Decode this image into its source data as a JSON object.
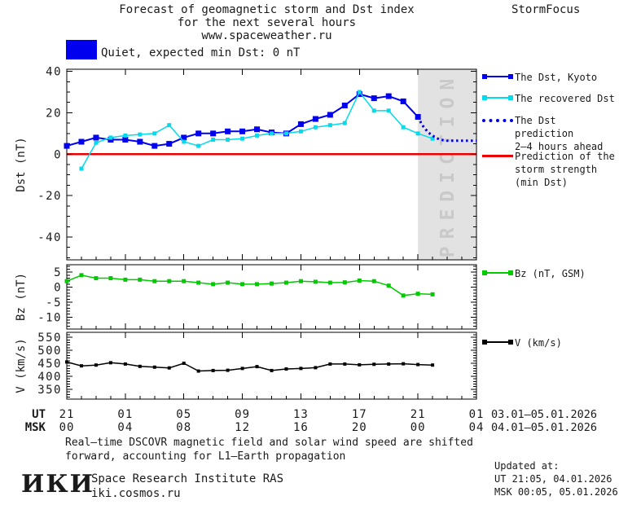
{
  "header": {
    "title_line1": "Forecast of geomagnetic storm and Dst index",
    "title_line2": "for the next several hours",
    "title_line3": "www.spaceweather.ru",
    "brand": "StormFocus"
  },
  "status": {
    "label": "Quiet, expected min Dst: 0 nT",
    "swatch_color": "#0000EE"
  },
  "legend": {
    "dst_kyoto": {
      "label": "The Dst, Kyoto",
      "color": "#0000EE",
      "style": "marker-line"
    },
    "recovered": {
      "label": "The recovered Dst",
      "color": "#00DCEC",
      "style": "marker-line"
    },
    "prediction": {
      "label_line1": "The Dst prediction",
      "label_line2": "2–4 hours ahead",
      "color": "#0000EE",
      "style": "dotted"
    },
    "strength": {
      "label_line1": "Prediction of the",
      "label_line2": "storm strength",
      "label_line3": "(min Dst)",
      "color": "#EE0000",
      "style": "line"
    },
    "bz": {
      "label": "Bz (nT, GSM)",
      "color": "#00CB00",
      "style": "marker-line"
    },
    "v": {
      "label": "V (km/s)",
      "color": "#000000",
      "style": "marker-line"
    }
  },
  "chart_data": {
    "type": "line",
    "x_axis": {
      "hours_total": 28,
      "major_every": 4,
      "minor_every": 1,
      "ut_labels": [
        "21",
        "01",
        "05",
        "09",
        "13",
        "17",
        "21",
        "01"
      ],
      "msk_labels": [
        "00",
        "04",
        "08",
        "12",
        "16",
        "20",
        "00",
        "04"
      ],
      "row_headers": {
        "ut": "UT",
        "msk": "MSK"
      },
      "ut_dates": "03.01–05.01.2026",
      "msk_dates": "04.01–05.01.2026"
    },
    "panels": [
      {
        "id": "dst",
        "ylabel": "Dst (nT)",
        "ylim": [
          -51,
          41
        ],
        "yticks": [
          40,
          20,
          0,
          -20,
          -40
        ],
        "minor_step": 5
      },
      {
        "id": "bz",
        "ylabel": "Bz (nT)",
        "ylim": [
          -14,
          7.5
        ],
        "yticks": [
          5,
          0,
          -5,
          -10
        ],
        "minor_step": 1
      },
      {
        "id": "v",
        "ylabel": "V (km/s)",
        "ylim": [
          312,
          569
        ],
        "yticks": [
          550,
          500,
          450,
          400,
          350
        ],
        "minor_step": 10
      }
    ],
    "series": [
      {
        "panel": "dst",
        "name": "The Dst, Kyoto",
        "color": "#0000EE",
        "marker_size": 7,
        "line_width": 2,
        "start_hour": 0,
        "values": [
          4,
          6,
          8,
          7,
          7,
          6,
          4,
          5,
          8,
          10,
          10,
          11,
          11,
          12,
          10.5,
          10,
          14.5,
          17,
          19,
          23.5,
          29,
          27,
          28,
          25.5,
          18
        ]
      },
      {
        "panel": "dst",
        "name": "The recovered Dst",
        "color": "#00DCEC",
        "marker_size": 5,
        "line_width": 1.5,
        "start_hour": 1,
        "values": [
          -7,
          5.5,
          8,
          9,
          9.5,
          10,
          14,
          6,
          4,
          7,
          7,
          7.5,
          9,
          10,
          10,
          11,
          13,
          14,
          15,
          30,
          21,
          21,
          13,
          10,
          7.5
        ]
      },
      {
        "panel": "dst",
        "name": "The Dst prediction 2-4 hours ahead",
        "color": "#0000EE",
        "style": "dotted",
        "line_width": 3,
        "points": [
          [
            24,
            18
          ],
          [
            24.3,
            14
          ],
          [
            24.7,
            10.5
          ],
          [
            25.1,
            8.5
          ],
          [
            25.5,
            7
          ],
          [
            26,
            6.5
          ],
          [
            28,
            6.5
          ]
        ]
      },
      {
        "panel": "bz",
        "name": "Bz (nT, GSM)",
        "color": "#00CB00",
        "marker_size": 5,
        "line_width": 1.5,
        "start_hour": 0,
        "values": [
          2,
          4,
          3,
          3,
          2.5,
          2.5,
          2,
          2,
          2,
          1.5,
          1,
          1.5,
          1,
          1,
          1.2,
          1.5,
          2,
          1.8,
          1.5,
          1.6,
          2.2,
          2,
          0.5,
          -2.8,
          -2.2,
          -2.4
        ]
      },
      {
        "panel": "v",
        "name": "V (km/s)",
        "color": "#000000",
        "marker_size": 4,
        "line_width": 1.5,
        "start_hour": 0,
        "values": [
          455,
          440,
          443,
          452,
          447,
          438,
          435,
          432,
          450,
          420,
          422,
          423,
          430,
          437,
          422,
          428,
          430,
          433,
          447,
          447,
          444,
          446,
          447,
          448,
          445,
          443
        ]
      }
    ],
    "zero_line": {
      "panel": "dst",
      "value": 0,
      "color": "#EE0000",
      "line_width": 2.5
    },
    "prediction_region": {
      "panel": "dst",
      "start_hour": 24,
      "end_hour": 28,
      "fill": "#E2E2E2",
      "label": "PREDICTION",
      "label_color": "#C9C9C9"
    }
  },
  "footer": {
    "note_line1": "Real–time DSCOVR magnetic field and solar wind speed are shifted",
    "note_line2": "forward, accounting for L1–Earth propagation",
    "logo": "ИКИ",
    "institute": "Space Research Institute RAS",
    "website": "iki.cosmos.ru",
    "updated_label": "Updated at:",
    "updated_ut": "UT  21:05, 04.01.2026",
    "updated_msk": "MSK 00:05, 05.01.2026"
  }
}
